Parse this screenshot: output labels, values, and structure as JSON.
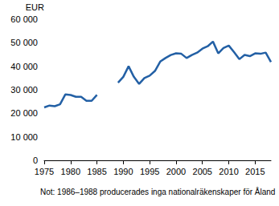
{
  "chart_data": {
    "type": "line",
    "y_label": "EUR",
    "note": "Not: 1986–1988 producerades inga nationalräkenskaper för Åland",
    "x": [
      1975,
      1976,
      1977,
      1978,
      1979,
      1980,
      1981,
      1982,
      1983,
      1984,
      1985,
      1986,
      1987,
      1988,
      1989,
      1990,
      1991,
      1992,
      1993,
      1994,
      1995,
      1996,
      1997,
      1998,
      1999,
      2000,
      2001,
      2002,
      2003,
      2004,
      2005,
      2006,
      2007,
      2008,
      2009,
      2010,
      2011,
      2012,
      2013,
      2014,
      2015,
      2016,
      2017,
      2018
    ],
    "values": [
      22500,
      23300,
      23000,
      23800,
      28000,
      27800,
      27000,
      27000,
      25300,
      25300,
      27800,
      null,
      null,
      null,
      33000,
      35500,
      40000,
      35500,
      32500,
      35000,
      36000,
      38000,
      42000,
      43500,
      44800,
      45500,
      45300,
      43500,
      44800,
      45800,
      47500,
      48500,
      50500,
      45500,
      47800,
      48800,
      46000,
      43000,
      44800,
      44300,
      45500,
      45300,
      45800,
      41800
    ],
    "color": "#2360a5",
    "xlim": [
      1975,
      2018
    ],
    "xticks": [
      1975,
      1980,
      1985,
      1990,
      1995,
      2000,
      2005,
      2010,
      2015
    ],
    "ylim": [
      0,
      60000
    ],
    "yticks": [
      0,
      {
        "value": 10000,
        "label": "10 000"
      },
      {
        "value": 20000,
        "label": "20 000"
      },
      {
        "value": 30000,
        "label": "30 000"
      },
      {
        "value": 40000,
        "label": "40 000"
      },
      {
        "value": 50000,
        "label": "50 000"
      },
      {
        "value": 60000,
        "label": "60 000"
      }
    ],
    "grid": false
  }
}
